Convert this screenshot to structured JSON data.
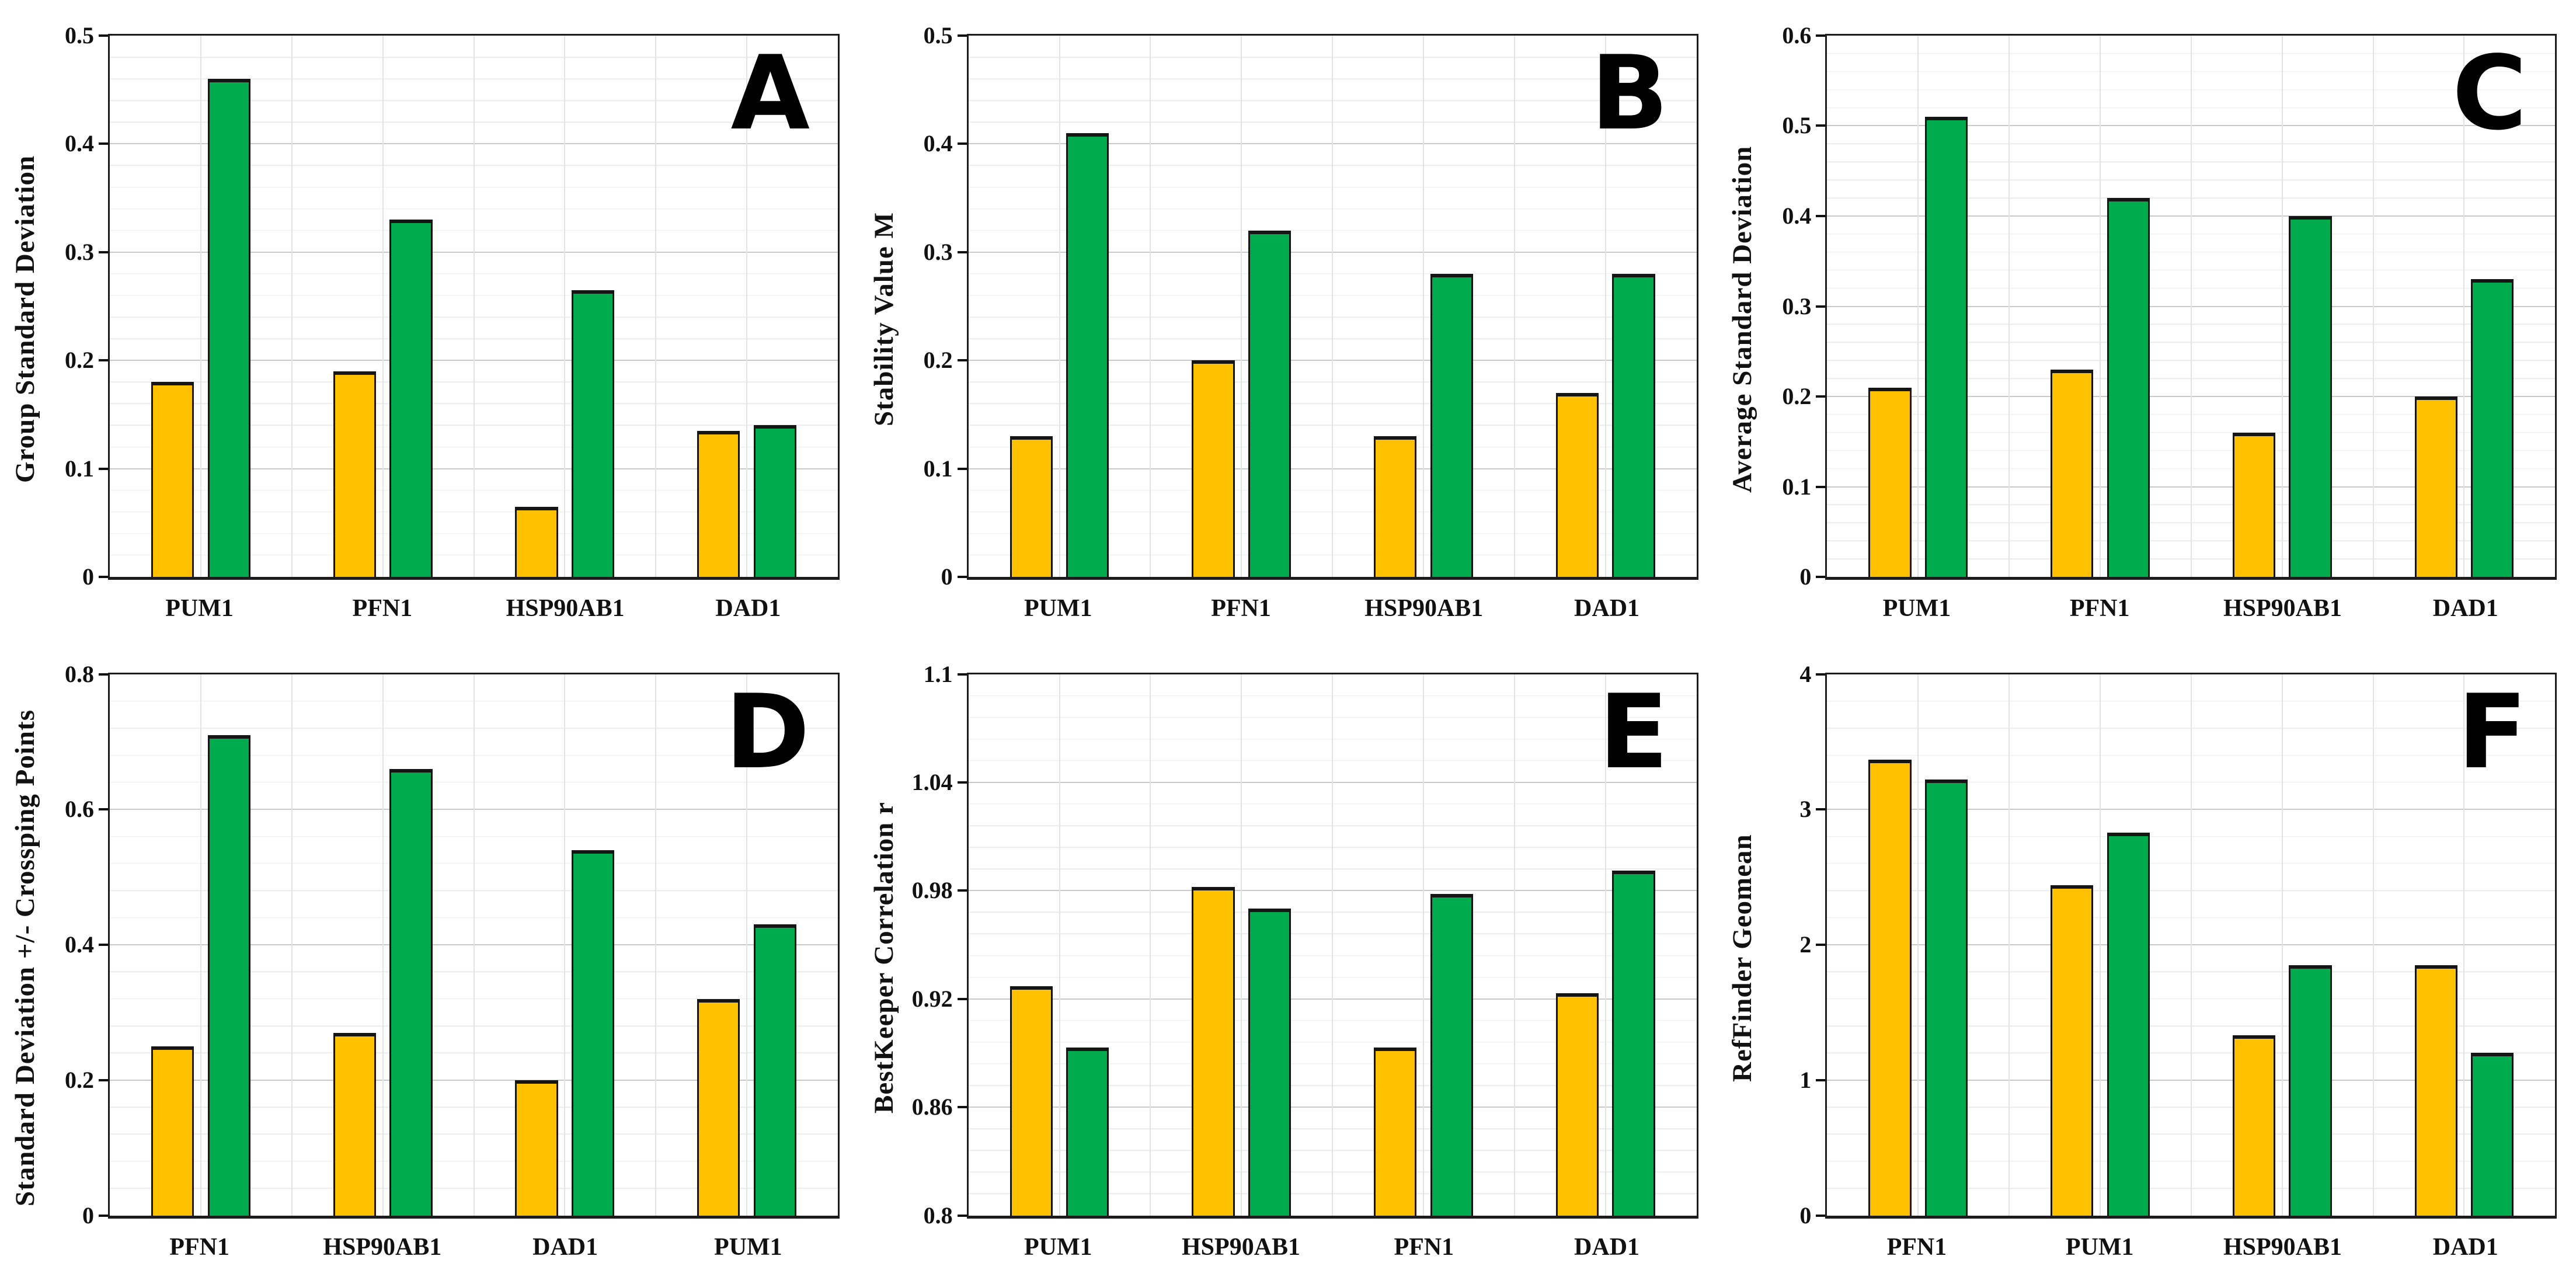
{
  "figure_title": "",
  "colors": {
    "series_orange": "#FFC000",
    "series_green": "#00AB4E",
    "bar_border": "#151515",
    "frame": "#1c1c1c",
    "gridline_major": "#c9c9c9",
    "gridline_minor": "#ececec",
    "text": "#111111"
  },
  "chart_data": [
    {
      "type": "bar",
      "panel_letter": "A",
      "title": "",
      "xlabel": "",
      "ylabel": "Group Standard Deviation",
      "ylim": [
        0,
        0.5
      ],
      "ytick_values": [
        0,
        0.1,
        0.2,
        0.3,
        0.4,
        0.5
      ],
      "ytick_labels": [
        "0",
        "0.1",
        "0.2",
        "0.3",
        "0.4",
        "0.5"
      ],
      "minor_divisions": 5,
      "grid": "on",
      "legend": "none",
      "categories": [
        "PUM1",
        "PFN1",
        "HSP90AB1",
        "DAD1"
      ],
      "series": [
        {
          "name": "orange",
          "color": "#FFC000",
          "values": [
            0.18,
            0.19,
            0.065,
            0.135
          ]
        },
        {
          "name": "green",
          "color": "#00AB4E",
          "values": [
            0.46,
            0.33,
            0.265,
            0.14
          ]
        }
      ]
    },
    {
      "type": "bar",
      "panel_letter": "B",
      "title": "",
      "xlabel": "",
      "ylabel": "Stability Value M",
      "ylim": [
        0,
        0.5
      ],
      "ytick_values": [
        0,
        0.1,
        0.2,
        0.3,
        0.4,
        0.5
      ],
      "ytick_labels": [
        "0",
        "0.1",
        "0.2",
        "0.3",
        "0.4",
        "0.5"
      ],
      "minor_divisions": 5,
      "grid": "on",
      "legend": "none",
      "categories": [
        "PUM1",
        "PFN1",
        "HSP90AB1",
        "DAD1"
      ],
      "series": [
        {
          "name": "orange",
          "color": "#FFC000",
          "values": [
            0.13,
            0.2,
            0.13,
            0.17
          ]
        },
        {
          "name": "green",
          "color": "#00AB4E",
          "values": [
            0.41,
            0.32,
            0.28,
            0.28
          ]
        }
      ]
    },
    {
      "type": "bar",
      "panel_letter": "C",
      "title": "",
      "xlabel": "",
      "ylabel": "Average Standard Deviation",
      "ylim": [
        0,
        0.6
      ],
      "ytick_values": [
        0,
        0.1,
        0.2,
        0.3,
        0.4,
        0.5,
        0.6
      ],
      "ytick_labels": [
        "0",
        "0.1",
        "0.2",
        "0.3",
        "0.4",
        "0.5",
        "0.6"
      ],
      "minor_divisions": 5,
      "grid": "on",
      "legend": "none",
      "categories": [
        "PUM1",
        "PFN1",
        "HSP90AB1",
        "DAD1"
      ],
      "series": [
        {
          "name": "orange",
          "color": "#FFC000",
          "values": [
            0.21,
            0.23,
            0.16,
            0.2
          ]
        },
        {
          "name": "green",
          "color": "#00AB4E",
          "values": [
            0.51,
            0.42,
            0.4,
            0.33
          ]
        }
      ]
    },
    {
      "type": "bar",
      "panel_letter": "D",
      "title": "",
      "xlabel": "",
      "ylabel": "Standard Deviation +/- Crossping Points",
      "ylim": [
        0,
        0.8
      ],
      "ytick_values": [
        0,
        0.2,
        0.4,
        0.6,
        0.8
      ],
      "ytick_labels": [
        "0",
        "0.2",
        "0.4",
        "0.6",
        "0.8"
      ],
      "minor_divisions": 5,
      "grid": "on",
      "legend": "none",
      "categories": [
        "PFN1",
        "HSP90AB1",
        "DAD1",
        "PUM1"
      ],
      "series": [
        {
          "name": "orange",
          "color": "#FFC000",
          "values": [
            0.25,
            0.27,
            0.2,
            0.32
          ]
        },
        {
          "name": "green",
          "color": "#00AB4E",
          "values": [
            0.71,
            0.66,
            0.54,
            0.43
          ]
        }
      ]
    },
    {
      "type": "bar",
      "panel_letter": "E",
      "title": "",
      "xlabel": "",
      "ylabel": "BestKeeper Correlation r",
      "ylim": [
        0.8,
        1.1
      ],
      "ytick_values": [
        0.8,
        0.86,
        0.92,
        0.98,
        1.04,
        1.1
      ],
      "ytick_labels": [
        "0.8",
        "0.86",
        "0.92",
        "0.98",
        "1.04",
        "1.1"
      ],
      "minor_divisions": 5,
      "grid": "on",
      "legend": "none",
      "categories": [
        "PUM1",
        "HSP90AB1",
        "PFN1",
        "DAD1"
      ],
      "series": [
        {
          "name": "orange",
          "color": "#FFC000",
          "values": [
            0.927,
            0.982,
            0.893,
            0.923
          ]
        },
        {
          "name": "green",
          "color": "#00AB4E",
          "values": [
            0.893,
            0.97,
            0.978,
            0.991
          ]
        }
      ]
    },
    {
      "type": "bar",
      "panel_letter": "F",
      "title": "",
      "xlabel": "",
      "ylabel": "RefFinder Geomean",
      "ylim": [
        0,
        4
      ],
      "ytick_values": [
        0,
        1,
        2,
        3,
        4
      ],
      "ytick_labels": [
        "0",
        "1",
        "2",
        "3",
        "4"
      ],
      "minor_divisions": 5,
      "grid": "on",
      "legend": "none",
      "categories": [
        "PFN1",
        "PUM1",
        "HSP90AB1",
        "DAD1"
      ],
      "series": [
        {
          "name": "orange",
          "color": "#FFC000",
          "values": [
            3.37,
            2.44,
            1.33,
            1.85
          ]
        },
        {
          "name": "green",
          "color": "#00AB4E",
          "values": [
            3.22,
            2.83,
            1.85,
            1.2
          ]
        }
      ]
    }
  ]
}
